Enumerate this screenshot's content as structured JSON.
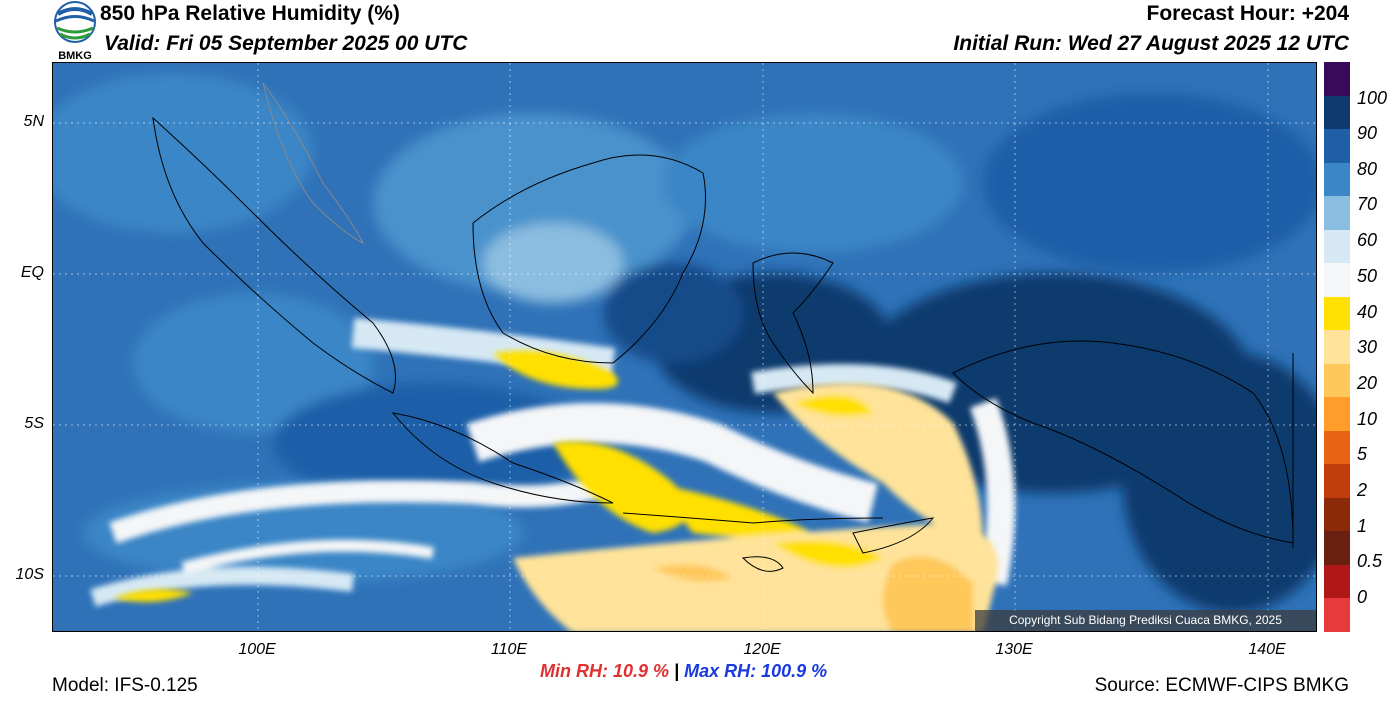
{
  "header": {
    "title": "850 hPa Relative Humidity (%)",
    "valid": "Valid: Fri 05 September 2025 00 UTC",
    "forecast_hour": "Forecast Hour: +204",
    "initial_run": "Initial Run: Wed 27 August 2025 12 UTC",
    "logo_text": "BMKG"
  },
  "map": {
    "lat_labels": [
      "5N",
      "EQ",
      "5S",
      "10S"
    ],
    "lon_labels": [
      "100E",
      "110E",
      "120E",
      "130E",
      "140E"
    ],
    "copyright": "Copyright Sub Bidang Prediksi Cuaca BMKG, 2025"
  },
  "colorbar": {
    "labels": [
      "100",
      "90",
      "80",
      "70",
      "60",
      "50",
      "40",
      "30",
      "20",
      "10",
      "5",
      "2",
      "1",
      "0.5",
      "0"
    ],
    "colors": [
      "#3a0a5a",
      "#0e3a6e",
      "#1f5fa8",
      "#3a86c6",
      "#8bbde0",
      "#d6e8f4",
      "#f4f6f8",
      "#ffe000",
      "#ffe39a",
      "#ffc85a",
      "#ff9d2a",
      "#e86414",
      "#c03c0c",
      "#8a2a08",
      "#6a2010",
      "#b01818",
      "#e83a3a"
    ]
  },
  "stats": {
    "min_rh": "Min RH:  10.9 %",
    "separator": "|",
    "max_rh": "Max RH: 100.9 %"
  },
  "footer": {
    "model": "Model: IFS-0.125",
    "source": "Source: ECMWF-CIPS BMKG"
  }
}
